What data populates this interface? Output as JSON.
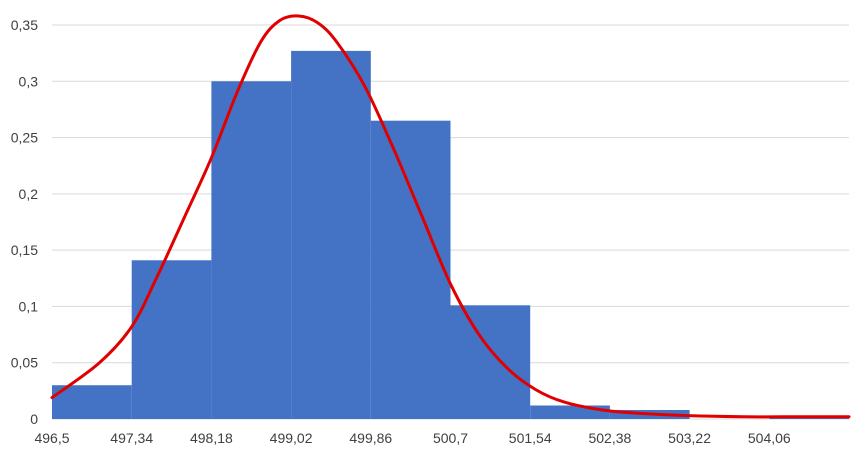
{
  "chart_data": {
    "type": "bar",
    "title": "",
    "xlabel": "",
    "ylabel": "",
    "grid": "horizontal",
    "legend": "none",
    "ylim": [
      0,
      0.35
    ],
    "y_ticks": [
      "0",
      "0,05",
      "0,1",
      "0,15",
      "0,2",
      "0,25",
      "0,3",
      "0,35"
    ],
    "x_ticks": [
      "496,5",
      "497,34",
      "498,18",
      "499,02",
      "499,86",
      "500,7",
      "501,54",
      "502,38",
      "503,22",
      "504,06"
    ],
    "bins": [
      {
        "from": 496.5,
        "to": 497.34,
        "value": 0.03
      },
      {
        "from": 497.34,
        "to": 498.18,
        "value": 0.141
      },
      {
        "from": 498.18,
        "to": 499.02,
        "value": 0.3
      },
      {
        "from": 499.02,
        "to": 499.86,
        "value": 0.327
      },
      {
        "from": 499.86,
        "to": 500.7,
        "value": 0.265
      },
      {
        "from": 500.7,
        "to": 501.54,
        "value": 0.101
      },
      {
        "from": 501.54,
        "to": 502.38,
        "value": 0.012
      },
      {
        "from": 502.38,
        "to": 503.22,
        "value": 0.008
      },
      {
        "from": 503.22,
        "to": 504.06,
        "value": 0.0
      },
      {
        "from": 504.06,
        "to": 504.9,
        "value": 0.003
      }
    ],
    "curve": {
      "x": [
        496.5,
        497.0,
        497.34,
        497.6,
        497.9,
        498.18,
        498.45,
        498.7,
        498.9,
        499.1,
        499.3,
        499.5,
        499.8,
        500.1,
        500.4,
        500.7,
        501.0,
        501.3,
        501.6,
        501.9,
        502.3,
        502.7,
        503.2,
        503.8,
        504.4,
        504.9
      ],
      "y": [
        0.019,
        0.05,
        0.082,
        0.125,
        0.18,
        0.232,
        0.29,
        0.335,
        0.354,
        0.358,
        0.352,
        0.335,
        0.295,
        0.24,
        0.18,
        0.12,
        0.075,
        0.045,
        0.026,
        0.015,
        0.008,
        0.005,
        0.003,
        0.002,
        0.002,
        0.002
      ]
    },
    "colors": {
      "bars": "#4472C4",
      "curve": "#E00000",
      "grid": "#D9D9D9",
      "text": "#404040"
    }
  }
}
